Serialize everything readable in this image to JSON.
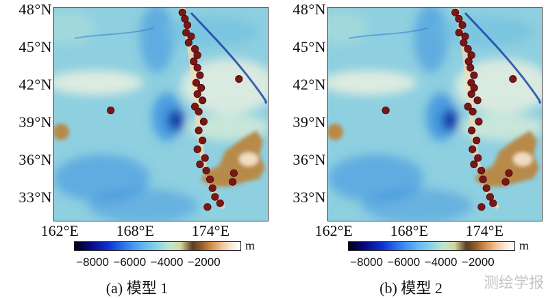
{
  "panels": [
    {
      "id": "a",
      "caption_prefix": "(a) ",
      "caption_model": "模型",
      "caption_num": " 1",
      "lat_labels": [
        "48°N",
        "45°N",
        "42°N",
        "39°N",
        "36°N",
        "33°N"
      ],
      "lon_labels": [
        "162°E",
        "168°E",
        "174°E"
      ],
      "colorbar_ticks": [
        "−8000",
        "−6000",
        "−4000",
        "−2000"
      ],
      "unit": "m"
    },
    {
      "id": "b",
      "caption_prefix": "(b) ",
      "caption_model": "模型",
      "caption_num": " 2",
      "lat_labels": [
        "48°N",
        "45°N",
        "42°N",
        "39°N",
        "36°N",
        "33°N"
      ],
      "lon_labels": [
        "162°E",
        "168°E",
        "174°E"
      ],
      "colorbar_ticks": [
        "−8000",
        "−6000",
        "−4000",
        "−2000"
      ],
      "unit": "m"
    }
  ],
  "map_extent": {
    "lon": [
      161.5,
      178.5
    ],
    "lat": [
      31.2,
      48.2
    ]
  },
  "colorbar_range_m": [
    -9000,
    0
  ],
  "seamount_points": [
    [
      171.7,
      47.8
    ],
    [
      171.9,
      47.3
    ],
    [
      172.1,
      46.8
    ],
    [
      172.0,
      46.2
    ],
    [
      172.4,
      45.9
    ],
    [
      172.2,
      45.4
    ],
    [
      172.7,
      44.9
    ],
    [
      172.9,
      44.4
    ],
    [
      172.6,
      43.9
    ],
    [
      172.9,
      43.4
    ],
    [
      173.1,
      42.8
    ],
    [
      172.8,
      42.2
    ],
    [
      173.2,
      41.8
    ],
    [
      172.9,
      41.3
    ],
    [
      173.3,
      40.8
    ],
    [
      172.7,
      40.3
    ],
    [
      173.0,
      39.9
    ],
    [
      173.4,
      39.1
    ],
    [
      173.0,
      38.4
    ],
    [
      173.3,
      37.6
    ],
    [
      172.9,
      36.9
    ],
    [
      173.5,
      36.2
    ],
    [
      173.1,
      35.7
    ],
    [
      173.6,
      35.2
    ],
    [
      173.9,
      34.5
    ],
    [
      174.1,
      33.8
    ],
    [
      174.3,
      33.1
    ],
    [
      174.7,
      32.6
    ],
    [
      173.7,
      32.3
    ],
    [
      175.8,
      35.0
    ],
    [
      175.7,
      34.3
    ],
    [
      176.2,
      42.5
    ],
    [
      166.0,
      40.0
    ]
  ],
  "colors": {
    "point": "#7a1616",
    "point_stroke": "#4a0808",
    "abyssal": "#8ecfe0",
    "deep": "#3a8fe0",
    "trench": "#0a2fa0",
    "shallow": "#e6efe0",
    "land": "#b88a48"
  },
  "watermark": "测绘学报"
}
